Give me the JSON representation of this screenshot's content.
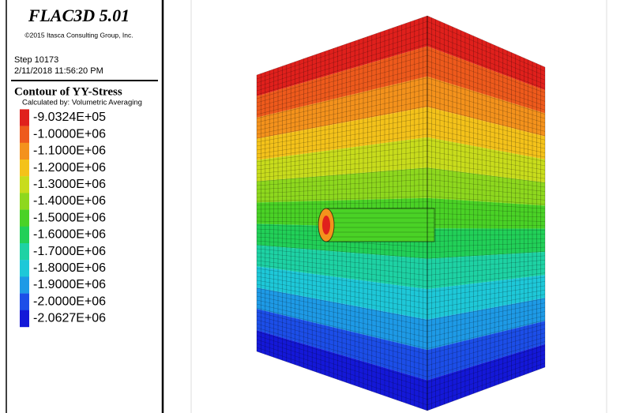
{
  "header": {
    "title": "FLAC3D 5.01",
    "copyright": "©2015 Itasca Consulting Group, Inc.",
    "step": "Step 10173",
    "timestamp": "2/11/2018 11:56:20 PM"
  },
  "legend": {
    "title": "Contour of YY-Stress",
    "subtitle": "Calculated by: Volumetric Averaging",
    "entries": [
      {
        "label": "-9.0324E+05",
        "color": "#e0201c"
      },
      {
        "label": "-1.0000E+06",
        "color": "#ee5a1c"
      },
      {
        "label": "-1.1000E+06",
        "color": "#f4921c"
      },
      {
        "label": "-1.2000E+06",
        "color": "#f4c21a"
      },
      {
        "label": "-1.3000E+06",
        "color": "#c8dc1c"
      },
      {
        "label": "-1.4000E+06",
        "color": "#8ed81e"
      },
      {
        "label": "-1.5000E+06",
        "color": "#4ad226"
      },
      {
        "label": "-1.6000E+06",
        "color": "#22d058"
      },
      {
        "label": "-1.7000E+06",
        "color": "#1ed2a4"
      },
      {
        "label": "-1.8000E+06",
        "color": "#1ec8d8"
      },
      {
        "label": "-1.9000E+06",
        "color": "#1e9ae6"
      },
      {
        "label": "-2.0000E+06",
        "color": "#1c4ee8"
      },
      {
        "label": "-2.0627E+06",
        "color": "#1418d8"
      }
    ]
  }
}
